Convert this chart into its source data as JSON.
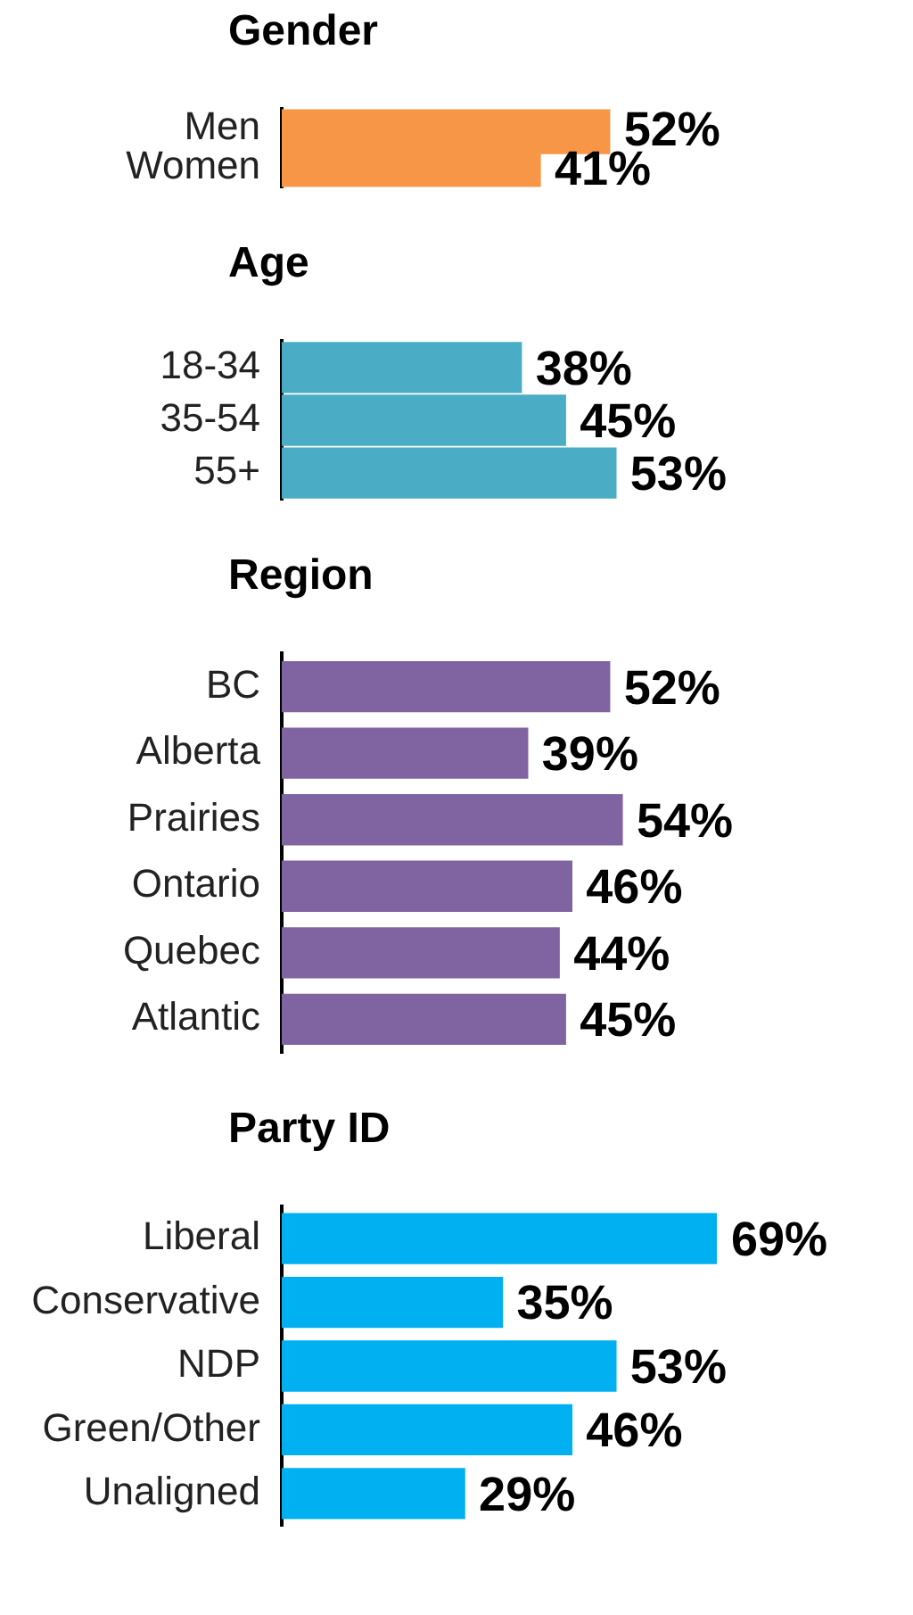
{
  "chart_data": [
    {
      "type": "bar",
      "orientation": "horizontal",
      "title": "Gender",
      "categories": [
        "Men",
        "Women"
      ],
      "values": [
        52,
        41
      ],
      "value_labels": [
        "52%",
        "41%"
      ],
      "color": "#f79646"
    },
    {
      "type": "bar",
      "orientation": "horizontal",
      "title": "Age",
      "categories": [
        "18-34",
        "35-54",
        "55+"
      ],
      "values": [
        38,
        45,
        53
      ],
      "value_labels": [
        "38%",
        "45%",
        "53%"
      ],
      "color": "#4bacc6"
    },
    {
      "type": "bar",
      "orientation": "horizontal",
      "title": "Region",
      "categories": [
        "BC",
        "Alberta",
        "Prairies",
        "Ontario",
        "Quebec",
        "Atlantic"
      ],
      "values": [
        52,
        39,
        54,
        46,
        44,
        45
      ],
      "value_labels": [
        "52%",
        "39%",
        "54%",
        "46%",
        "44%",
        "45%"
      ],
      "color": "#8064a2"
    },
    {
      "type": "bar",
      "orientation": "horizontal",
      "title": "Party ID",
      "categories": [
        "Liberal",
        "Conservative",
        "NDP",
        "Green/Other",
        "Unaligned"
      ],
      "values": [
        69,
        35,
        53,
        46,
        29
      ],
      "value_labels": [
        "69%",
        "35%",
        "53%",
        "46%",
        "29%"
      ],
      "color": "#00b0f0"
    }
  ]
}
